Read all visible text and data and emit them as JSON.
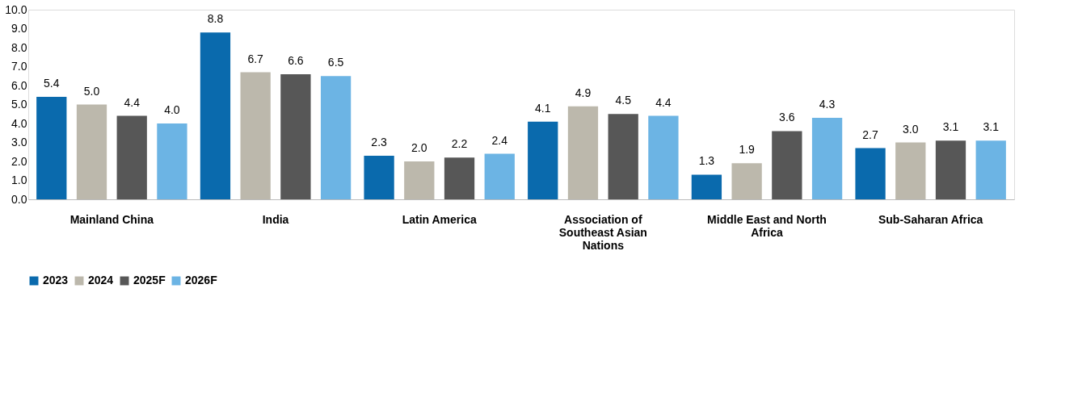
{
  "chart_data": {
    "type": "bar",
    "categories": [
      "Mainland China",
      "India",
      "Latin America",
      "Association of Southeast Asian Nations",
      "Middle East and North Africa",
      "Sub-Saharan Africa"
    ],
    "series": [
      {
        "name": "2023",
        "color": "#0a6aad",
        "values": [
          5.4,
          8.8,
          2.3,
          4.1,
          1.3,
          2.7
        ],
        "value_labels": [
          "5.4",
          "8.8",
          "2.3",
          "4.1",
          "1.3",
          "2.7"
        ]
      },
      {
        "name": "2024",
        "color": "#bcb8ac",
        "values": [
          5.0,
          6.7,
          2.0,
          4.9,
          1.9,
          3.0
        ],
        "value_labels": [
          "5.0",
          "6.7",
          "2.0",
          "4.9",
          "1.9",
          "3.0"
        ]
      },
      {
        "name": "2025F",
        "color": "#575757",
        "values": [
          4.4,
          6.6,
          2.2,
          4.5,
          3.6,
          3.1
        ],
        "value_labels": [
          "4.4",
          "6.6",
          "2.2",
          "4.5",
          "3.6",
          "3.1"
        ]
      },
      {
        "name": "2026F",
        "color": "#6cb4e4",
        "values": [
          4.0,
          6.5,
          2.4,
          4.4,
          4.3,
          3.1
        ],
        "value_labels": [
          "4.0",
          "6.5",
          "2.4",
          "4.4",
          "4.3",
          "3.1"
        ]
      }
    ],
    "ylim": [
      0,
      10
    ],
    "yticks": [
      {
        "value": 0,
        "label": "0.0"
      },
      {
        "value": 1,
        "label": "1.0"
      },
      {
        "value": 2,
        "label": "2.0"
      },
      {
        "value": 3,
        "label": "3.0"
      },
      {
        "value": 4,
        "label": "4.0"
      },
      {
        "value": 5,
        "label": "5.0"
      },
      {
        "value": 6,
        "label": "6.0"
      },
      {
        "value": 7,
        "label": "7.0"
      },
      {
        "value": 8,
        "label": "8.0"
      },
      {
        "value": 9,
        "label": "9.0"
      },
      {
        "value": 10,
        "label": "10.0"
      }
    ],
    "grid": false,
    "legend": "bottom"
  }
}
